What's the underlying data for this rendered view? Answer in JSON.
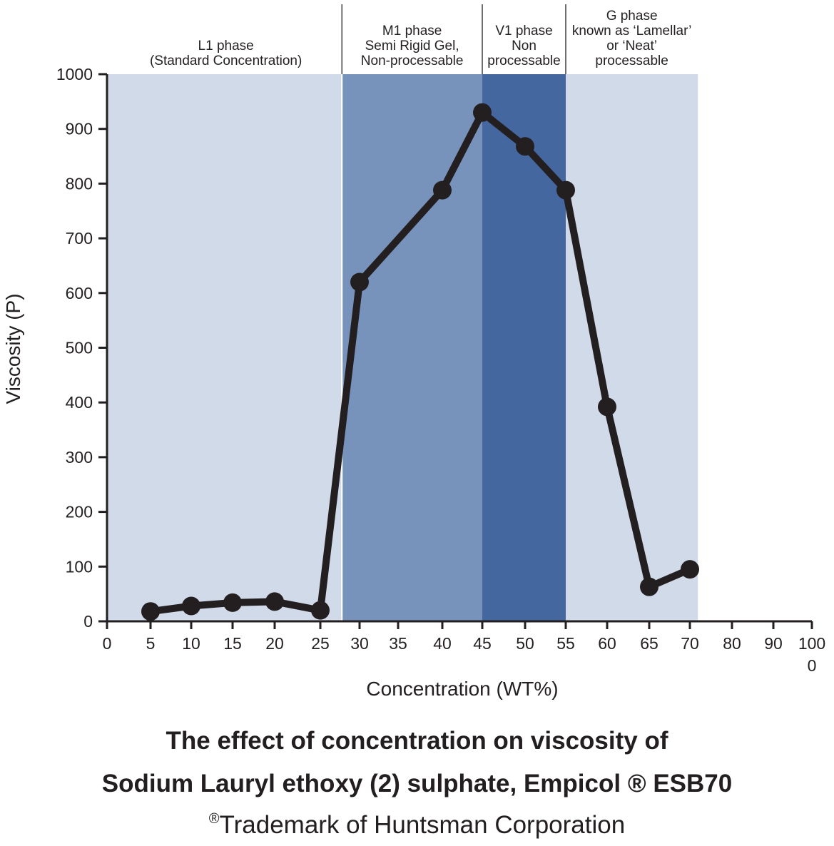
{
  "chart_data": {
    "type": "line",
    "xlabel": "Concentration (WT%)",
    "ylabel": "Viscosity (P)",
    "ylim": [
      0,
      1000
    ],
    "yticks": [
      0,
      100,
      200,
      300,
      400,
      500,
      600,
      700,
      800,
      900,
      1000
    ],
    "xtick_labels": [
      "0",
      "5",
      "10",
      "15",
      "20",
      "25",
      "30",
      "35",
      "40",
      "45",
      "50",
      "55",
      "60",
      "65",
      "70",
      "80",
      "90",
      "100"
    ],
    "xtick_extra_label": "0",
    "series": [
      {
        "name": "Sodium Lauryl ethoxy (2) sulphate",
        "points": [
          {
            "x": "5",
            "y": 18
          },
          {
            "x": "10",
            "y": 28
          },
          {
            "x": "15",
            "y": 34
          },
          {
            "x": "20",
            "y": 36
          },
          {
            "x": "25",
            "y": 20
          },
          {
            "x": "30",
            "y": 620
          },
          {
            "x": "40",
            "y": 788
          },
          {
            "x": "45",
            "y": 930
          },
          {
            "x": "50",
            "y": 868
          },
          {
            "x": "55",
            "y": 788
          },
          {
            "x": "60",
            "y": 392
          },
          {
            "x": "65",
            "y": 63
          },
          {
            "x": "70",
            "y": 95
          }
        ],
        "color": "#231f20"
      }
    ],
    "phases": [
      {
        "name": "L1 phase",
        "lines": [
          "L1 phase",
          "(Standard Concentration)"
        ],
        "from": "0",
        "to_between": [
          "25",
          "30"
        ],
        "color": "#d0dae8"
      },
      {
        "name": "M1 phase",
        "lines": [
          "M1 phase",
          "Semi Rigid Gel,",
          "Non-processable"
        ],
        "from_between": [
          "25",
          "30"
        ],
        "to": "45",
        "color": "#7893bb"
      },
      {
        "name": "V1 phase",
        "lines": [
          "V1 phase",
          "Non",
          "processable"
        ],
        "from": "45",
        "to": "55",
        "color": "#4567a0"
      },
      {
        "name": "G phase",
        "lines": [
          "G phase",
          "known as ‘Lamellar’",
          "or ‘Neat’",
          "processable"
        ],
        "from": "55",
        "to_between": [
          "70",
          "80"
        ],
        "color": "#d0dae8"
      }
    ]
  },
  "caption": {
    "line1": "The effect of concentration on viscosity of",
    "line2": "Sodium Lauryl ethoxy (2) sulphate, Empicol ® ESB70",
    "line3_mark": "®",
    "line3_text": "Trademark of Huntsman Corporation"
  }
}
